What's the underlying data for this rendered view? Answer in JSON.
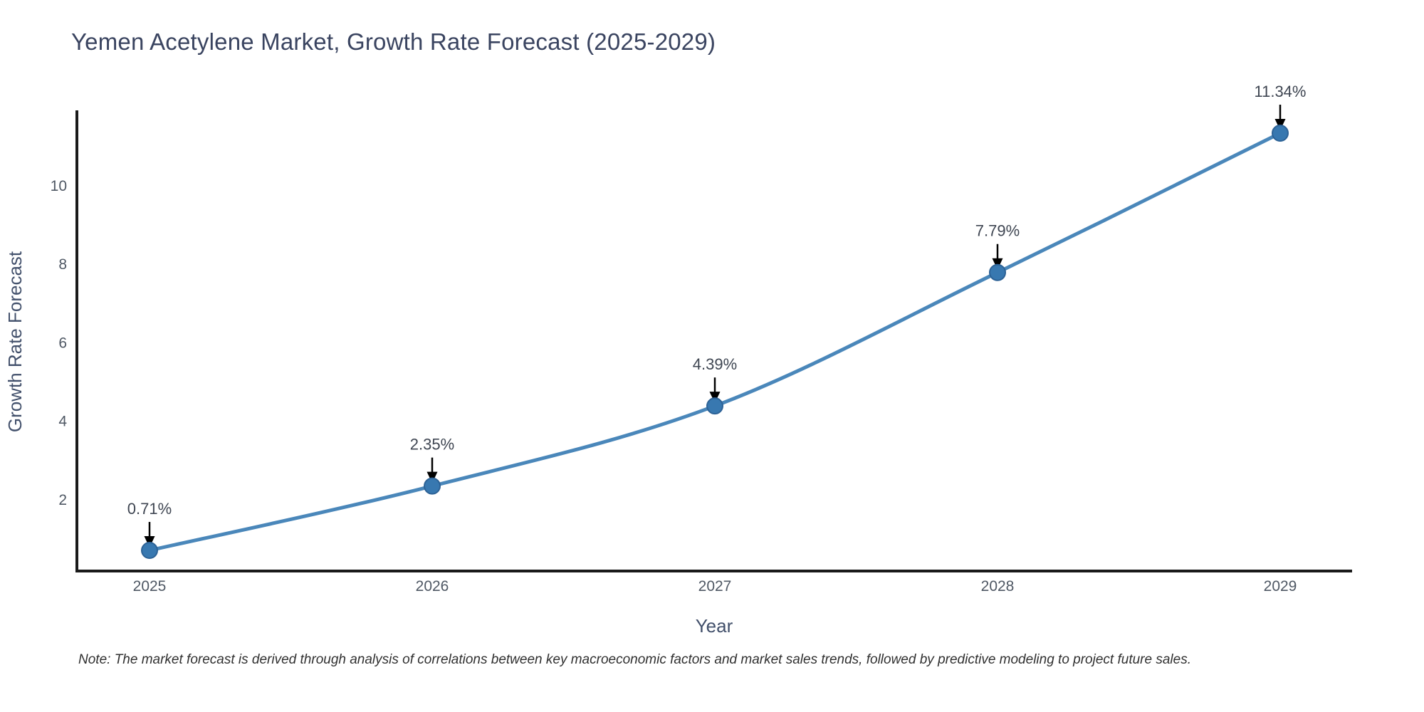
{
  "figure": {
    "title": "Yemen Acetylene Market, Growth Rate Forecast (2025-2029)",
    "note": "Note: The market forecast is derived through analysis of correlations between key macroeconomic factors and market sales trends, followed by predictive modeling to project future sales."
  },
  "chart_data": {
    "type": "line",
    "title": "Yemen Acetylene Market, Growth Rate Forecast (2025-2029)",
    "categories": [
      "2025",
      "2026",
      "2027",
      "2028",
      "2029"
    ],
    "x": [
      2025,
      2026,
      2027,
      2028,
      2029
    ],
    "values": [
      0.71,
      2.35,
      4.39,
      7.79,
      11.34
    ],
    "point_labels": [
      "0.71%",
      "2.35%",
      "4.39%",
      "7.79%",
      "11.34%"
    ],
    "xlabel": "Year",
    "ylabel": "Growth Rate Forecast",
    "yticks": [
      2,
      4,
      6,
      8,
      10
    ],
    "ylim": [
      0.19,
      11.9
    ],
    "xlim": [
      2024.74,
      2029.28
    ],
    "grid": false,
    "legend_position": "none",
    "line_shape": "spline",
    "annotation_style": "value label with downward arrow to marker",
    "colors": {
      "line": "#4a87ba",
      "marker": "#3878b0",
      "marker_edge": "#2d6296",
      "axis": "#1a1a1a",
      "tick_label": "#4f5864",
      "axis_title": "#42506b",
      "chart_title": "#3a4460",
      "annotation_text": "#3f4652",
      "arrow": "#000000",
      "note_text": "#303030",
      "background": "#ffffff"
    }
  }
}
